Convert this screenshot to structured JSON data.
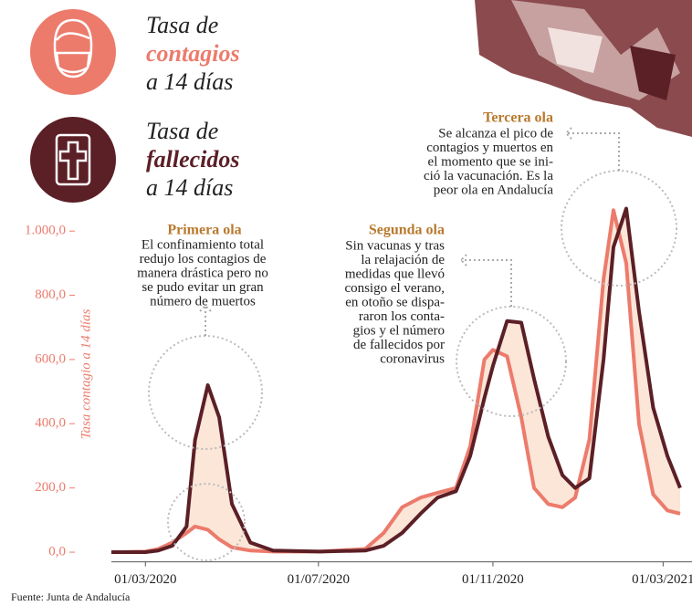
{
  "chart_data": {
    "type": "line",
    "legend_text": {
      "before": "Tasa de",
      "after": "a 14 días"
    },
    "ylabel": "Tasa contagio a 14 días",
    "source": "Fuente: Junta de Andalucía",
    "x": [
      "06/02/2020",
      "01/03/2020",
      "10/03/2020",
      "20/03/2020",
      "30/03/2020",
      "05/04/2020",
      "14/04/2020",
      "22/04/2020",
      "01/05/2020",
      "14/05/2020",
      "30/05/2020",
      "02/07/2020",
      "03/08/2020",
      "16/08/2020",
      "29/08/2020",
      "11/09/2020",
      "23/09/2020",
      "06/10/2020",
      "16/10/2020",
      "26/10/2020",
      "01/11/2020",
      "11/11/2020",
      "21/11/2020",
      "30/11/2020",
      "10/12/2020",
      "20/12/2020",
      "29/12/2020",
      "08/01/2021",
      "18/01/2021",
      "25/01/2021",
      "03/02/2021",
      "12/02/2021",
      "22/02/2021",
      "04/03/2021",
      "13/03/2021"
    ],
    "series": [
      {
        "name": "contagios",
        "color": "#ec7b6c",
        "values": [
          0,
          2,
          10,
          30,
          60,
          80,
          70,
          40,
          15,
          5,
          2,
          2,
          10,
          60,
          140,
          170,
          185,
          200,
          330,
          600,
          630,
          610,
          420,
          200,
          150,
          140,
          170,
          350,
          850,
          1065,
          900,
          400,
          180,
          130,
          120
        ]
      },
      {
        "name": "fallecidos",
        "color": "#5b1f26",
        "values": [
          0,
          0,
          5,
          20,
          80,
          350,
          520,
          420,
          150,
          30,
          5,
          2,
          5,
          20,
          60,
          120,
          170,
          190,
          300,
          480,
          580,
          720,
          715,
          540,
          360,
          240,
          200,
          230,
          600,
          950,
          1070,
          750,
          450,
          300,
          200
        ]
      }
    ],
    "xlim": [
      "06/02/2020",
      "13/03/2021"
    ],
    "xticks": [
      "01/03/2020",
      "01/07/2020",
      "01/11/2020",
      "01/03/2021"
    ],
    "ylim": [
      -30,
      1100
    ],
    "yticks": [
      {
        "value": 0,
        "label": "0,0"
      },
      {
        "value": 200,
        "label": "200,0"
      },
      {
        "value": 400,
        "label": "400,0"
      },
      {
        "value": 600,
        "label": "600,0"
      },
      {
        "value": 800,
        "label": "800,0"
      },
      {
        "value": 1000,
        "label": "1.000,0"
      }
    ],
    "annotations": [
      {
        "title": "Primera ola",
        "lines": [
          "El confinamiento total",
          "redujo los contagios de",
          "manera drástica pero no",
          "se pudo evitar un gran",
          "número de muertos"
        ]
      },
      {
        "title": "Segunda ola",
        "lines": [
          "Sin vacunas y tras",
          "la relajación de",
          "medidas que llevó",
          "consigo el verano,",
          "en otoño se dispa-",
          "raron los conta-",
          "gios y el número",
          "de fallecidos por",
          "coronavirus"
        ]
      },
      {
        "title": "Tercera ola",
        "lines": [
          "Se alcanza el pico de",
          "contagios y muertos en",
          "el momento que se ini-",
          "ció la vacunación. Es la",
          "peor ola en Andalucía"
        ]
      }
    ]
  }
}
